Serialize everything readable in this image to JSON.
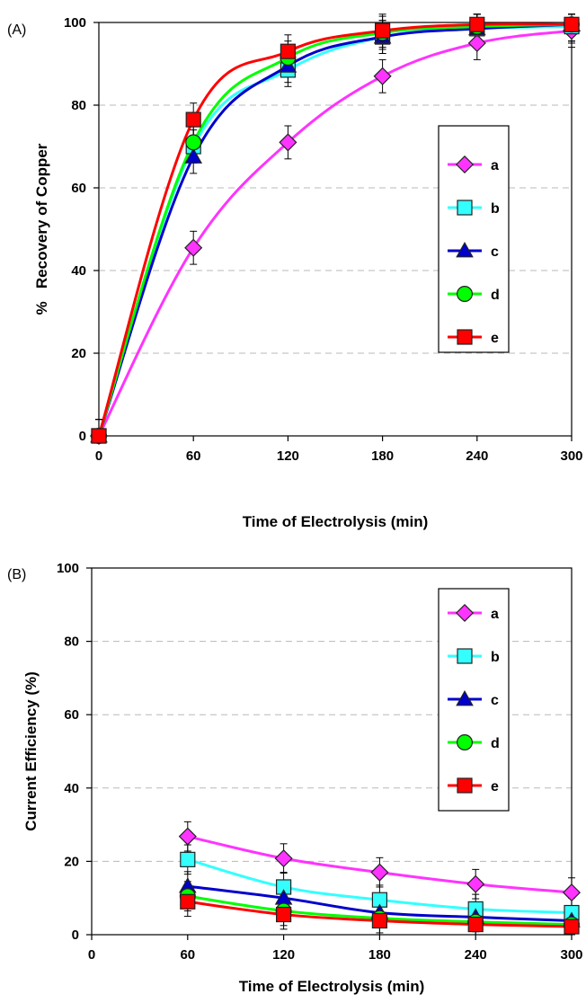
{
  "chart_data": [
    {
      "type": "line",
      "panel_label": "(A)",
      "xlabel": "Time of Electrolysis (min)",
      "ylabel": "%   Recovery of Copper",
      "xlim": [
        0,
        300
      ],
      "ylim": [
        0,
        100
      ],
      "x_ticks": [
        0,
        60,
        120,
        180,
        240,
        300
      ],
      "y_ticks": [
        0,
        20,
        40,
        60,
        80,
        100
      ],
      "grid": "horizontal dashed",
      "legend_position": "right-middle",
      "series": [
        {
          "name": "a",
          "marker": "diamond",
          "color": "#ff33ff",
          "x": [
            0,
            60,
            120,
            180,
            240,
            300
          ],
          "y": [
            0,
            45.5,
            71,
            87,
            95,
            98
          ]
        },
        {
          "name": "b",
          "marker": "square",
          "color": "#33ffff",
          "x": [
            0,
            60,
            120,
            180,
            240,
            300
          ],
          "y": [
            0,
            70,
            88.5,
            96.5,
            98.5,
            99
          ]
        },
        {
          "name": "c",
          "marker": "triangle",
          "color": "#0000cc",
          "x": [
            0,
            60,
            120,
            180,
            240,
            300
          ],
          "y": [
            0,
            67.5,
            89.5,
            96.5,
            98.5,
            99.5
          ]
        },
        {
          "name": "d",
          "marker": "circle",
          "color": "#00ff00",
          "x": [
            0,
            60,
            120,
            180,
            240,
            300
          ],
          "y": [
            0,
            71,
            91.5,
            97.5,
            99,
            99.5
          ]
        },
        {
          "name": "e",
          "marker": "square",
          "color": "#ff0000",
          "x": [
            0,
            60,
            120,
            180,
            240,
            300
          ],
          "y": [
            0,
            76.5,
            93,
            98,
            99.5,
            99.5
          ]
        }
      ],
      "error_bar": 4
    },
    {
      "type": "line",
      "panel_label": "(B)",
      "xlabel": "Time of Electrolysis (min)",
      "ylabel": "Current Efficiency (%)",
      "xlim": [
        0,
        300
      ],
      "ylim": [
        0,
        100
      ],
      "x_ticks": [
        0,
        60,
        120,
        180,
        240,
        300
      ],
      "y_ticks": [
        0,
        20,
        40,
        60,
        80,
        100
      ],
      "grid": "horizontal dashed",
      "legend_position": "right-middle",
      "series": [
        {
          "name": "a",
          "marker": "diamond",
          "color": "#ff33ff",
          "x": [
            60,
            120,
            180,
            240,
            300
          ],
          "y": [
            26.8,
            20.8,
            17,
            13.8,
            11.5
          ]
        },
        {
          "name": "b",
          "marker": "square",
          "color": "#33ffff",
          "x": [
            60,
            120,
            180,
            240,
            300
          ],
          "y": [
            20.5,
            13,
            9.5,
            7,
            6
          ]
        },
        {
          "name": "c",
          "marker": "triangle",
          "color": "#0000cc",
          "x": [
            60,
            120,
            180,
            240,
            300
          ],
          "y": [
            13.2,
            10,
            6,
            4.8,
            3.8
          ]
        },
        {
          "name": "d",
          "marker": "circle",
          "color": "#00ff00",
          "x": [
            60,
            120,
            180,
            240,
            300
          ],
          "y": [
            10.5,
            6.5,
            4.5,
            3.5,
            2.8
          ]
        },
        {
          "name": "e",
          "marker": "square",
          "color": "#ff0000",
          "x": [
            60,
            120,
            180,
            240,
            300
          ],
          "y": [
            9,
            5.5,
            3.8,
            2.8,
            2.2
          ]
        }
      ],
      "error_bar": 4
    }
  ]
}
